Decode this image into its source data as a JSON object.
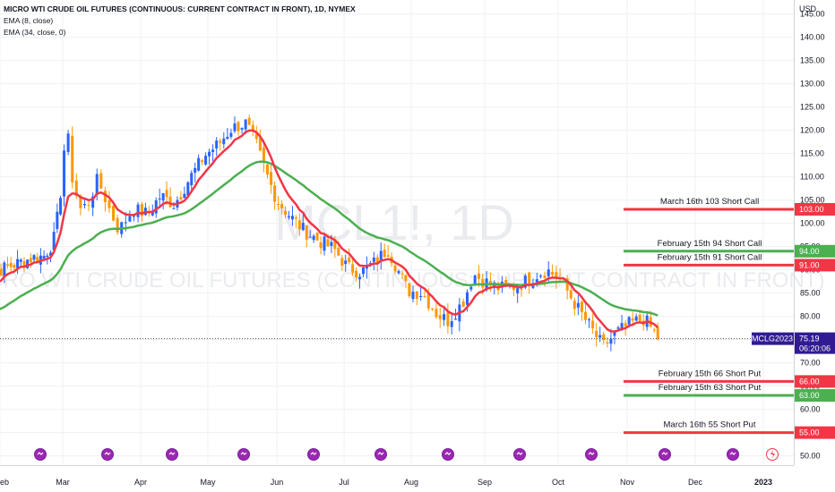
{
  "header": {
    "title": "MICRO WTI CRUDE OIL FUTURES (CONTINUOUS: CURRENT CONTRACT IN FRONT), 1D, NYMEX",
    "indicators": [
      "EMA (8, close)",
      "EMA (34, close, 0)"
    ]
  },
  "watermark": {
    "symbol": "MCL1!, 1D",
    "name": "MICRO WTI CRUDE OIL FUTURES (CONTINUOUS: CURRENT CONTRACT IN FRONT)"
  },
  "price_scale": {
    "unit": "USD",
    "ticks": [
      "145.00",
      "140.00",
      "135.00",
      "130.00",
      "125.00",
      "120.00",
      "115.00",
      "110.00",
      "105.00",
      "100.00",
      "95.00",
      "90.00",
      "85.00",
      "80.00",
      "75.00",
      "70.00",
      "65.00",
      "60.00",
      "55.00",
      "50.00"
    ]
  },
  "time_scale": {
    "labels": [
      "eb",
      "Mar",
      "Apr",
      "May",
      "Jun",
      "Jul",
      "Aug",
      "Sep",
      "Oct",
      "Nov",
      "Dec",
      "2023"
    ]
  },
  "current_price": {
    "symbol": "MCLG2023",
    "price": "75.19",
    "countdown": "06:20:06",
    "value": 75.19
  },
  "levels": [
    {
      "label": "March 16th 103 Short Call",
      "price_label": "103.00",
      "value": 103
    },
    {
      "label": "February 15th 94 Short Call",
      "price_label": "94.00",
      "value": 94
    },
    {
      "label": "February 15th 91 Short Call",
      "price_label": "91.00",
      "value": 91
    },
    {
      "label": "February 15th 66 Short Put",
      "price_label": "66.00",
      "value": 66
    },
    {
      "label": "February 15th 63 Short Put",
      "price_label": "63.00",
      "value": 63
    },
    {
      "label": "March 16th 55 Short Put",
      "price_label": "55.00",
      "value": 55
    }
  ],
  "colors": {
    "up": "#2962ff",
    "down": "#ff9800",
    "ema_fast": "#f23645",
    "ema_slow": "#4caf50",
    "level_red": "#f23645",
    "level_green": "#4caf50",
    "price_tag": "#311b92",
    "grid": "#eef0f3",
    "axis_text": "#131722"
  },
  "chart_data": {
    "type": "candlestick",
    "ylim": [
      48,
      148
    ],
    "log_scale": false,
    "grid": true,
    "series": [
      {
        "name": "EMA (8, close)",
        "color": "#f23645"
      },
      {
        "name": "EMA (34, close, 0)",
        "color": "#4caf50"
      }
    ],
    "anchors": [
      {
        "m": -0.3,
        "v": 86.5
      },
      {
        "m": 0,
        "v": 90.0
      },
      {
        "m": 0.3,
        "v": 91.5
      },
      {
        "m": 0.5,
        "v": 92.5
      },
      {
        "m": 0.7,
        "v": 93.0
      },
      {
        "m": 0.85,
        "v": 96.0
      },
      {
        "m": 0.95,
        "v": 104.0
      },
      {
        "m": 1.0,
        "v": 113.0
      },
      {
        "m": 1.05,
        "v": 121.0
      },
      {
        "m": 1.12,
        "v": 110.0
      },
      {
        "m": 1.22,
        "v": 103.0
      },
      {
        "m": 1.32,
        "v": 104.0
      },
      {
        "m": 1.45,
        "v": 109.5
      },
      {
        "m": 1.6,
        "v": 103.0
      },
      {
        "m": 1.72,
        "v": 98.5
      },
      {
        "m": 1.9,
        "v": 103.0
      },
      {
        "m": 2.1,
        "v": 102.0
      },
      {
        "m": 2.3,
        "v": 106.0
      },
      {
        "m": 2.5,
        "v": 104.0
      },
      {
        "m": 2.7,
        "v": 109.0
      },
      {
        "m": 2.95,
        "v": 114.5
      },
      {
        "m": 3.15,
        "v": 117.0
      },
      {
        "m": 3.35,
        "v": 120.5
      },
      {
        "m": 3.55,
        "v": 121.5
      },
      {
        "m": 3.7,
        "v": 117.0
      },
      {
        "m": 3.85,
        "v": 110.5
      },
      {
        "m": 4.0,
        "v": 105.0
      },
      {
        "m": 4.2,
        "v": 101.5
      },
      {
        "m": 4.4,
        "v": 98.5
      },
      {
        "m": 4.65,
        "v": 96.0
      },
      {
        "m": 4.85,
        "v": 94.5
      },
      {
        "m": 5.05,
        "v": 90.5
      },
      {
        "m": 5.25,
        "v": 89.5
      },
      {
        "m": 5.45,
        "v": 91.5
      },
      {
        "m": 5.65,
        "v": 94.5
      },
      {
        "m": 5.8,
        "v": 90.0
      },
      {
        "m": 5.95,
        "v": 85.5
      },
      {
        "m": 6.15,
        "v": 85.0
      },
      {
        "m": 6.35,
        "v": 80.5
      },
      {
        "m": 6.5,
        "v": 79.0
      },
      {
        "m": 6.7,
        "v": 83.0
      },
      {
        "m": 6.85,
        "v": 89.0
      },
      {
        "m": 7.0,
        "v": 87.5
      },
      {
        "m": 7.2,
        "v": 86.0
      },
      {
        "m": 7.45,
        "v": 86.5
      },
      {
        "m": 7.65,
        "v": 88.5
      },
      {
        "m": 7.85,
        "v": 90.0
      },
      {
        "m": 8.05,
        "v": 87.5
      },
      {
        "m": 8.25,
        "v": 82.5
      },
      {
        "m": 8.45,
        "v": 78.0
      },
      {
        "m": 8.65,
        "v": 73.5
      },
      {
        "m": 8.85,
        "v": 76.5
      },
      {
        "m": 9.05,
        "v": 78.5
      },
      {
        "m": 9.25,
        "v": 79.5
      },
      {
        "m": 9.35,
        "v": 77.5
      },
      {
        "m": 9.45,
        "v": 75.5
      }
    ]
  }
}
